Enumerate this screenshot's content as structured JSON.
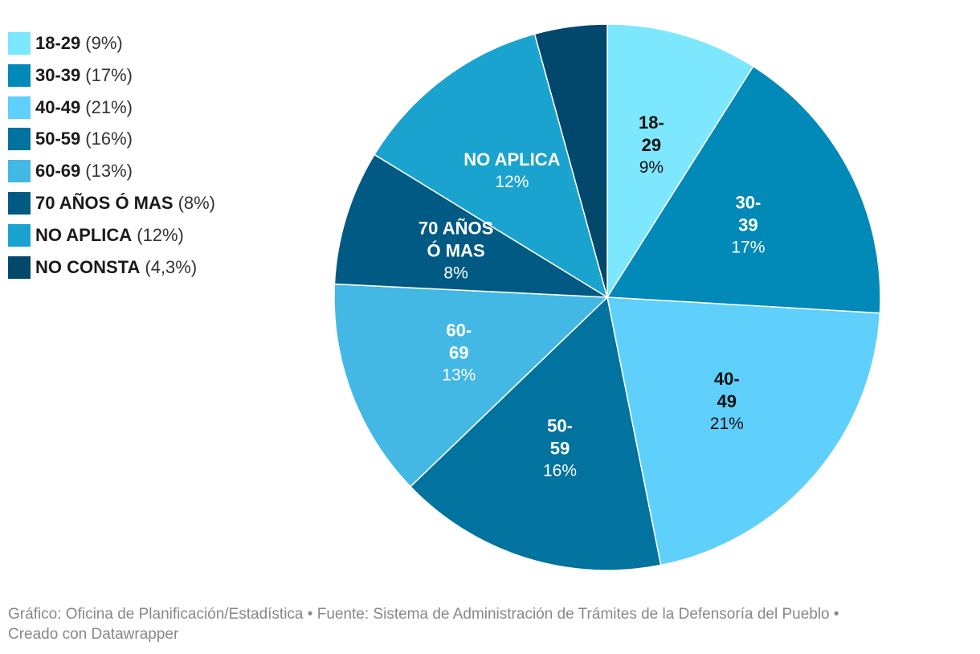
{
  "chart_data": {
    "type": "pie",
    "title": "",
    "slices": [
      {
        "label": "18-29",
        "display_label": [
          "18-",
          "29"
        ],
        "percent_label": "9%",
        "legend_value": "(9%)",
        "value": 9,
        "color": "#7ce7fd",
        "text_color": "#111111"
      },
      {
        "label": "30-39",
        "display_label": [
          "30-",
          "39"
        ],
        "percent_label": "17%",
        "legend_value": "(17%)",
        "value": 17,
        "color": "#0189b8",
        "text_color": "#ffffff"
      },
      {
        "label": "40-49",
        "display_label": [
          "40-",
          "49"
        ],
        "percent_label": "21%",
        "legend_value": "(21%)",
        "value": 21,
        "color": "#5fcffb",
        "text_color": "#111111"
      },
      {
        "label": "50-59",
        "display_label": [
          "50-",
          "59"
        ],
        "percent_label": "16%",
        "legend_value": "(16%)",
        "value": 16,
        "color": "#02729e",
        "text_color": "#ffffff"
      },
      {
        "label": "60-69",
        "display_label": [
          "60-",
          "69"
        ],
        "percent_label": "13%",
        "legend_value": "(13%)",
        "value": 13,
        "color": "#44b8e4",
        "text_color": "#ffffff"
      },
      {
        "label": "70 AÑOS Ó MAS",
        "display_label": [
          "70 AÑOS",
          "Ó MAS"
        ],
        "percent_label": "8%",
        "legend_value": "(8%)",
        "value": 8,
        "color": "#015a84",
        "text_color": "#ffffff"
      },
      {
        "label": "NO APLICA",
        "display_label": [
          "NO APLICA"
        ],
        "percent_label": "12%",
        "legend_value": "(12%)",
        "value": 12,
        "color": "#1ba3cf",
        "text_color": "#ffffff"
      },
      {
        "label": "NO CONSTA",
        "display_label": [],
        "percent_label": "",
        "legend_value": "(4,3%)",
        "value": 4.3,
        "color": "#02486d",
        "text_color": "#ffffff"
      }
    ],
    "legend_position": "top-left"
  },
  "footer": {
    "line1": "Gráfico: Oficina de Planificación/Estadística • Fuente: Sistema de Administración de Trámites de la Defensoría del Pueblo •",
    "line2": "Creado con Datawrapper"
  }
}
